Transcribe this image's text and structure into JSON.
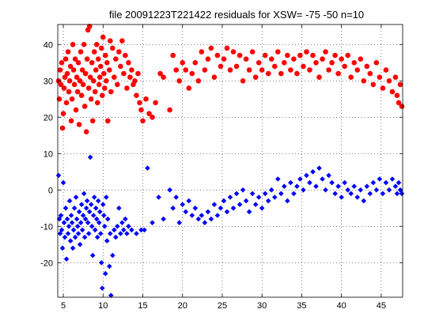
{
  "chart_data": {
    "type": "scatter",
    "title": "file 20091223T221422   residuals for XSW= -75 -50  n=10",
    "xlim": [
      4.3,
      47.7
    ],
    "ylim": [
      -29.5,
      45.5
    ],
    "grid": true,
    "xticks": [
      5,
      10,
      15,
      20,
      25,
      30,
      35,
      40,
      45
    ],
    "yticks": [
      -20,
      -10,
      0,
      10,
      20,
      30,
      40
    ],
    "series": [
      {
        "marker": "circle",
        "color": "#ff0000",
        "points": [
          [
            4.4,
            30
          ],
          [
            4.5,
            25
          ],
          [
            4.6,
            33
          ],
          [
            4.7,
            29
          ],
          [
            4.8,
            35
          ],
          [
            4.9,
            17
          ],
          [
            5.0,
            21
          ],
          [
            5.1,
            28
          ],
          [
            5.2,
            31
          ],
          [
            5.3,
            36
          ],
          [
            5.4,
            24
          ],
          [
            5.5,
            32
          ],
          [
            5.6,
            38
          ],
          [
            5.7,
            27
          ],
          [
            5.8,
            30
          ],
          [
            5.9,
            34
          ],
          [
            6.0,
            19
          ],
          [
            6.1,
            25
          ],
          [
            6.2,
            40
          ],
          [
            6.3,
            33
          ],
          [
            6.4,
            29
          ],
          [
            6.5,
            36
          ],
          [
            6.6,
            22
          ],
          [
            6.7,
            31
          ],
          [
            6.8,
            27
          ],
          [
            6.9,
            35
          ],
          [
            7.0,
            18
          ],
          [
            7.1,
            30
          ],
          [
            7.2,
            38
          ],
          [
            7.3,
            26
          ],
          [
            7.4,
            33
          ],
          [
            7.5,
            29
          ],
          [
            7.6,
            40
          ],
          [
            7.7,
            23
          ],
          [
            7.8,
            32
          ],
          [
            7.9,
            16
          ],
          [
            8.0,
            36
          ],
          [
            8.1,
            44
          ],
          [
            8.2,
            28
          ],
          [
            8.3,
            45
          ],
          [
            8.4,
            31
          ],
          [
            8.5,
            25
          ],
          [
            8.6,
            35
          ],
          [
            8.7,
            19
          ],
          [
            8.8,
            30
          ],
          [
            8.9,
            38
          ],
          [
            9.0,
            27
          ],
          [
            9.1,
            33
          ],
          [
            9.2,
            40
          ],
          [
            9.3,
            24
          ],
          [
            9.4,
            36
          ],
          [
            9.5,
            29
          ],
          [
            9.6,
            31
          ],
          [
            9.7,
            34
          ],
          [
            9.8,
            39
          ],
          [
            9.9,
            26
          ],
          [
            10.0,
            42
          ],
          [
            10.1,
            32
          ],
          [
            10.2,
            28
          ],
          [
            10.3,
            37
          ],
          [
            10.4,
            30
          ],
          [
            10.5,
            35
          ],
          [
            10.6,
            19
          ],
          [
            10.8,
            33
          ],
          [
            10.9,
            41
          ],
          [
            11.0,
            27
          ],
          [
            11.2,
            39
          ],
          [
            11.4,
            31
          ],
          [
            11.6,
            36
          ],
          [
            11.8,
            29
          ],
          [
            12.0,
            38
          ],
          [
            12.2,
            34
          ],
          [
            12.4,
            41
          ],
          [
            12.6,
            32
          ],
          [
            12.8,
            37
          ],
          [
            13.0,
            28
          ],
          [
            13.2,
            35
          ],
          [
            13.4,
            31
          ],
          [
            13.6,
            33
          ],
          [
            13.8,
            29
          ],
          [
            14.0,
            30
          ],
          [
            14.2,
            26
          ],
          [
            14.4,
            32
          ],
          [
            14.6,
            24
          ],
          [
            14.8,
            22
          ],
          [
            15.0,
            19
          ],
          [
            15.4,
            25
          ],
          [
            15.8,
            21
          ],
          [
            16.2,
            20
          ],
          [
            16.6,
            24
          ],
          [
            17.2,
            32
          ],
          [
            17.6,
            31
          ],
          [
            18.4,
            22
          ],
          [
            18.8,
            37
          ],
          [
            19.2,
            33
          ],
          [
            19.6,
            30
          ],
          [
            20.0,
            35
          ],
          [
            20.4,
            33
          ],
          [
            20.8,
            28
          ],
          [
            21.2,
            32
          ],
          [
            21.6,
            35
          ],
          [
            22.0,
            30
          ],
          [
            22.4,
            38
          ],
          [
            22.8,
            33
          ],
          [
            23.2,
            36
          ],
          [
            23.6,
            39
          ],
          [
            24.0,
            31
          ],
          [
            24.4,
            37
          ],
          [
            24.8,
            34
          ],
          [
            25.2,
            36
          ],
          [
            25.6,
            39
          ],
          [
            26.0,
            33
          ],
          [
            26.4,
            38
          ],
          [
            26.8,
            34
          ],
          [
            27.2,
            37
          ],
          [
            27.6,
            30
          ],
          [
            28.0,
            36
          ],
          [
            28.4,
            33
          ],
          [
            28.8,
            38
          ],
          [
            29.2,
            31
          ],
          [
            29.6,
            35
          ],
          [
            30.0,
            33
          ],
          [
            30.4,
            37
          ],
          [
            30.8,
            32
          ],
          [
            31.2,
            36
          ],
          [
            31.6,
            34
          ],
          [
            32.0,
            38
          ],
          [
            32.4,
            32
          ],
          [
            32.8,
            35
          ],
          [
            33.2,
            37
          ],
          [
            33.6,
            33
          ],
          [
            34.0,
            36
          ],
          [
            34.4,
            32
          ],
          [
            34.8,
            37
          ],
          [
            35.2,
            34
          ],
          [
            35.6,
            38
          ],
          [
            36.0,
            33
          ],
          [
            36.4,
            37
          ],
          [
            36.8,
            35
          ],
          [
            37.2,
            31
          ],
          [
            37.6,
            36
          ],
          [
            38.0,
            38
          ],
          [
            38.4,
            33
          ],
          [
            38.8,
            35
          ],
          [
            39.2,
            37
          ],
          [
            39.6,
            32
          ],
          [
            40.0,
            36
          ],
          [
            40.4,
            34
          ],
          [
            40.8,
            37
          ],
          [
            41.2,
            31
          ],
          [
            41.6,
            35
          ],
          [
            42.0,
            33
          ],
          [
            42.4,
            36
          ],
          [
            42.8,
            30
          ],
          [
            43.2,
            34
          ],
          [
            43.6,
            32
          ],
          [
            44.0,
            29
          ],
          [
            44.4,
            35
          ],
          [
            44.8,
            31
          ],
          [
            45.2,
            28
          ],
          [
            45.6,
            33
          ],
          [
            46.0,
            30
          ],
          [
            46.4,
            27
          ],
          [
            46.8,
            31
          ],
          [
            47.0,
            26
          ],
          [
            47.2,
            24
          ],
          [
            47.4,
            29
          ],
          [
            47.6,
            23
          ]
        ]
      },
      {
        "marker": "diamond",
        "color": "#0000ff",
        "points": [
          [
            4.4,
            4
          ],
          [
            4.5,
            -8
          ],
          [
            4.6,
            -12
          ],
          [
            4.7,
            -7
          ],
          [
            4.8,
            -11
          ],
          [
            4.9,
            -16
          ],
          [
            5.0,
            2
          ],
          [
            5.1,
            -9
          ],
          [
            5.2,
            -13
          ],
          [
            5.3,
            -5
          ],
          [
            5.4,
            -19
          ],
          [
            5.5,
            -8
          ],
          [
            5.6,
            -12
          ],
          [
            5.7,
            -10
          ],
          [
            5.8,
            -3
          ],
          [
            5.9,
            -14
          ],
          [
            6.0,
            -7
          ],
          [
            6.1,
            -9
          ],
          [
            6.2,
            -16
          ],
          [
            6.3,
            -11
          ],
          [
            6.4,
            -5
          ],
          [
            6.5,
            -13
          ],
          [
            6.6,
            -2
          ],
          [
            6.7,
            -8
          ],
          [
            6.8,
            -10
          ],
          [
            6.9,
            -12
          ],
          [
            7.0,
            -6
          ],
          [
            7.1,
            -15
          ],
          [
            7.2,
            -9
          ],
          [
            7.3,
            -4
          ],
          [
            7.4,
            -11
          ],
          [
            7.5,
            -7
          ],
          [
            7.6,
            -1
          ],
          [
            7.7,
            -13
          ],
          [
            7.8,
            -8
          ],
          [
            7.9,
            -5
          ],
          [
            8.0,
            -3
          ],
          [
            8.1,
            -9
          ],
          [
            8.2,
            -12
          ],
          [
            8.3,
            -6
          ],
          [
            8.4,
            9
          ],
          [
            8.5,
            -4
          ],
          [
            8.6,
            -10
          ],
          [
            8.7,
            -18
          ],
          [
            8.8,
            -7
          ],
          [
            8.9,
            -2
          ],
          [
            9.0,
            -11
          ],
          [
            9.1,
            -5
          ],
          [
            9.2,
            -8
          ],
          [
            9.3,
            -13
          ],
          [
            9.4,
            -3
          ],
          [
            9.5,
            -9
          ],
          [
            9.6,
            -6
          ],
          [
            9.7,
            -12
          ],
          [
            9.8,
            -20
          ],
          [
            9.9,
            -27
          ],
          [
            10.0,
            -4
          ],
          [
            10.1,
            -7
          ],
          [
            10.2,
            -10
          ],
          [
            10.3,
            -23
          ],
          [
            10.4,
            -2
          ],
          [
            10.5,
            -14
          ],
          [
            10.6,
            -8
          ],
          [
            10.8,
            -21
          ],
          [
            10.9,
            -12
          ],
          [
            11.0,
            -29
          ],
          [
            11.2,
            -18
          ],
          [
            11.4,
            -11
          ],
          [
            11.6,
            -13
          ],
          [
            11.8,
            -10
          ],
          [
            12.0,
            -5
          ],
          [
            12.2,
            -12
          ],
          [
            12.4,
            -9
          ],
          [
            12.6,
            -11
          ],
          [
            12.8,
            -8
          ],
          [
            13.0,
            -12
          ],
          [
            13.2,
            -10
          ],
          [
            13.6,
            -11
          ],
          [
            14.2,
            -12
          ],
          [
            14.8,
            -11
          ],
          [
            15.2,
            -11
          ],
          [
            15.6,
            6
          ],
          [
            16.2,
            -9
          ],
          [
            17.0,
            -2
          ],
          [
            17.6,
            -8
          ],
          [
            18.4,
            0
          ],
          [
            18.8,
            -5
          ],
          [
            19.2,
            -2
          ],
          [
            19.6,
            -9
          ],
          [
            20.0,
            -4
          ],
          [
            20.4,
            -6
          ],
          [
            20.8,
            -3
          ],
          [
            21.2,
            -7
          ],
          [
            21.6,
            -5
          ],
          [
            22.0,
            -8
          ],
          [
            22.4,
            -7
          ],
          [
            22.8,
            -9
          ],
          [
            23.2,
            -6
          ],
          [
            23.6,
            -8
          ],
          [
            24.0,
            -4
          ],
          [
            24.4,
            -7
          ],
          [
            24.8,
            -5
          ],
          [
            25.2,
            -3
          ],
          [
            25.6,
            -6
          ],
          [
            26.0,
            -2
          ],
          [
            26.4,
            -5
          ],
          [
            26.8,
            -1
          ],
          [
            27.2,
            -4
          ],
          [
            27.6,
            0
          ],
          [
            28.0,
            -3
          ],
          [
            28.4,
            -6
          ],
          [
            28.8,
            -1
          ],
          [
            29.2,
            -4
          ],
          [
            29.6,
            -2
          ],
          [
            30.0,
            -5
          ],
          [
            30.4,
            -1
          ],
          [
            30.8,
            -3
          ],
          [
            31.2,
            0
          ],
          [
            31.6,
            -2
          ],
          [
            32.0,
            3
          ],
          [
            32.4,
            -1
          ],
          [
            32.8,
            1
          ],
          [
            33.2,
            -3
          ],
          [
            33.6,
            2
          ],
          [
            34.0,
            -1
          ],
          [
            34.4,
            1
          ],
          [
            34.8,
            3
          ],
          [
            35.2,
            0
          ],
          [
            35.6,
            4
          ],
          [
            36.0,
            2
          ],
          [
            36.4,
            5
          ],
          [
            36.8,
            1
          ],
          [
            37.2,
            6
          ],
          [
            37.6,
            3
          ],
          [
            38.0,
            0
          ],
          [
            38.4,
            4
          ],
          [
            38.8,
            2
          ],
          [
            39.2,
            -1
          ],
          [
            39.6,
            1
          ],
          [
            40.0,
            -2
          ],
          [
            40.4,
            2
          ],
          [
            40.8,
            0
          ],
          [
            41.2,
            -1
          ],
          [
            41.6,
            1
          ],
          [
            42.0,
            -2
          ],
          [
            42.4,
            0
          ],
          [
            42.8,
            -3
          ],
          [
            43.2,
            1
          ],
          [
            43.6,
            -1
          ],
          [
            44.0,
            2
          ],
          [
            44.4,
            0
          ],
          [
            44.8,
            3
          ],
          [
            45.2,
            -1
          ],
          [
            45.6,
            2
          ],
          [
            46.0,
            0
          ],
          [
            46.4,
            3
          ],
          [
            46.8,
            1
          ],
          [
            47.0,
            -1
          ],
          [
            47.2,
            2
          ],
          [
            47.4,
            0
          ],
          [
            47.6,
            -1
          ]
        ]
      }
    ]
  }
}
